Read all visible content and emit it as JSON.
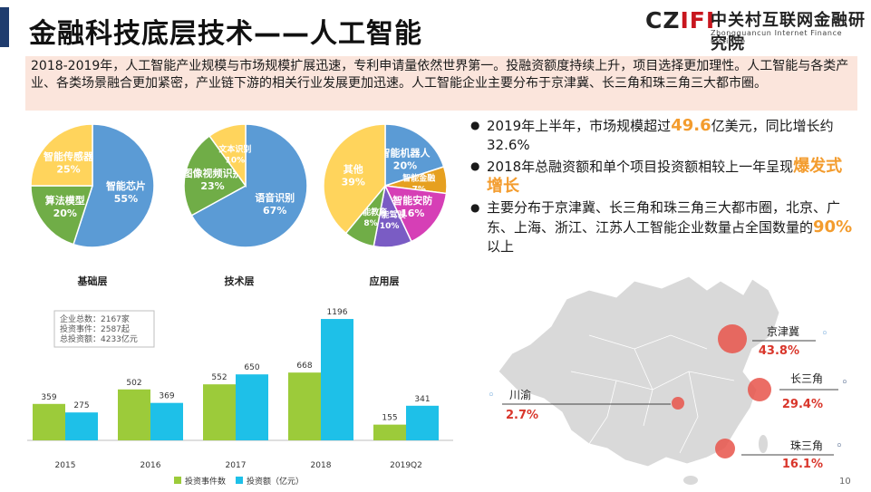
{
  "title": "金融科技底层技术——人工智能",
  "logo": {
    "mark_black": "CZ",
    "mark_red": "IFI",
    "name_cn": "中关村互联网金融研究院",
    "name_en": "Zhongguancun Internet Finance Institute"
  },
  "intro": "2018-2019年，人工智能产业规模与市场规模扩展迅速，专利申请量依然世界第一。投融资额度持续上升，项目选择更加理性。人工智能与各类产业、各类场景融合更加紧密，产业链下游的相关行业发展更加迅速。人工智能企业主要分布于京津冀、长三角和珠三角三大都市圈。",
  "bullets": [
    {
      "parts": [
        "2019年上半年，市场规模超过",
        "49.6",
        "亿美元，同比增长约32.6%"
      ]
    },
    {
      "parts": [
        "2018年总融资额和单个项目投资额相较上一年呈现",
        "爆发式增长",
        ""
      ]
    },
    {
      "parts": [
        "主要分布于京津冀、长三角和珠三角三大都市圈，北京、广东、上海、浙江、江苏人工智能企业数量占全国数量的",
        "90%",
        "以上"
      ]
    }
  ],
  "colors": {
    "blue": "#5b9bd5",
    "green": "#70ad47",
    "yellow": "#ffd45c",
    "purple": "#7a5cc4",
    "orange": "#e6a020",
    "magenta": "#d63fb6",
    "bar_green": "#9ccb3a",
    "bar_cyan": "#1ec0e8",
    "red": "#d9362b",
    "map": "#d9d9d9"
  },
  "chart_data": [
    {
      "type": "pie",
      "title": "基础层",
      "slices": [
        {
          "label": "智能芯片",
          "value": 55,
          "display": "55%",
          "color": "#5b9bd5"
        },
        {
          "label": "算法模型",
          "value": 20,
          "display": "20%",
          "color": "#70ad47"
        },
        {
          "label": "智能传感器",
          "value": 25,
          "display": "25%",
          "color": "#ffd45c"
        }
      ]
    },
    {
      "type": "pie",
      "title": "技术层",
      "slices": [
        {
          "label": "语音识别",
          "value": 67,
          "display": "67%",
          "color": "#5b9bd5"
        },
        {
          "label": "图像视频识别",
          "value": 23,
          "display": "23%",
          "color": "#70ad47"
        },
        {
          "label": "文本识别",
          "value": 10,
          "display": "10%",
          "color": "#ffd45c"
        }
      ]
    },
    {
      "type": "pie",
      "title": "应用层",
      "slices": [
        {
          "label": "智能机器人",
          "value": 20,
          "display": "20%",
          "color": "#5b9bd5"
        },
        {
          "label": "智能金融",
          "value": 7,
          "display": "7%",
          "color": "#e6a020"
        },
        {
          "label": "智能安防",
          "value": 16,
          "display": "16%",
          "color": "#d63fb6"
        },
        {
          "label": "智能驾驶",
          "value": 10,
          "display": "10%",
          "color": "#7a5cc4"
        },
        {
          "label": "智能教育",
          "value": 8,
          "display": "8%",
          "color": "#70ad47"
        },
        {
          "label": "其他",
          "value": 39,
          "display": "39%",
          "color": "#ffd45c"
        }
      ]
    },
    {
      "type": "bar",
      "categories": [
        "2015",
        "2016",
        "2017",
        "2018",
        "2019Q2"
      ],
      "series": [
        {
          "name": "投资事件数",
          "values": [
            359,
            502,
            552,
            668,
            155
          ],
          "color": "#9ccb3a"
        },
        {
          "name": "投资额（亿元）",
          "values": [
            275,
            369,
            650,
            1196,
            341
          ],
          "color": "#1ec0e8"
        }
      ],
      "ylim": [
        0,
        1250
      ],
      "annotation": [
        "企业总数：2167家",
        "投资事件：2587起",
        "总投资额：4233亿元"
      ],
      "legend": "bottom"
    }
  ],
  "map": {
    "regions": [
      {
        "name": "京津冀",
        "value": "43.8%",
        "pin": "blue"
      },
      {
        "name": "长三角",
        "value": "29.4%",
        "pin": "blue"
      },
      {
        "name": "珠三角",
        "value": "16.1%",
        "pin": "blue"
      },
      {
        "name": "川渝",
        "value": "2.7%",
        "pin": "blue"
      }
    ]
  },
  "page_number": "10"
}
